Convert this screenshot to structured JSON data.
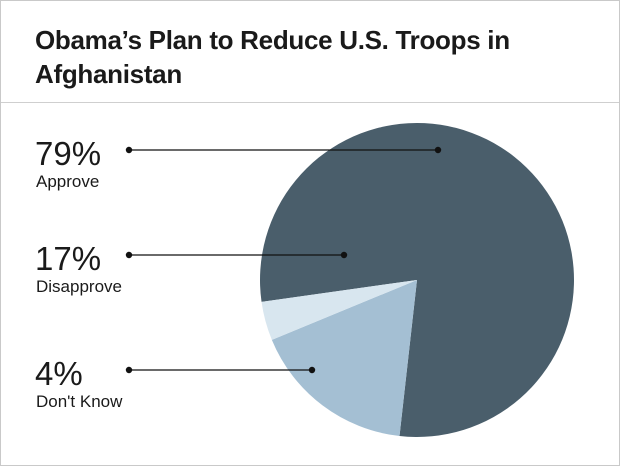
{
  "title": "Obama’s Plan to Reduce U.S. Troops in Afghanistan",
  "chart_data": {
    "type": "pie",
    "title": "Obama’s Plan to Reduce U.S. Troops in Afghanistan",
    "slices": [
      {
        "label": "Approve",
        "value": 79,
        "display": "79%",
        "color": "#4a5e6b"
      },
      {
        "label": "Disapprove",
        "value": 17,
        "display": "17%",
        "color": "#a4bfd3"
      },
      {
        "label": "Don't Know",
        "value": 4,
        "display": "4%",
        "color": "#d8e6ef"
      }
    ],
    "legend": "left, with leader lines to slices"
  }
}
